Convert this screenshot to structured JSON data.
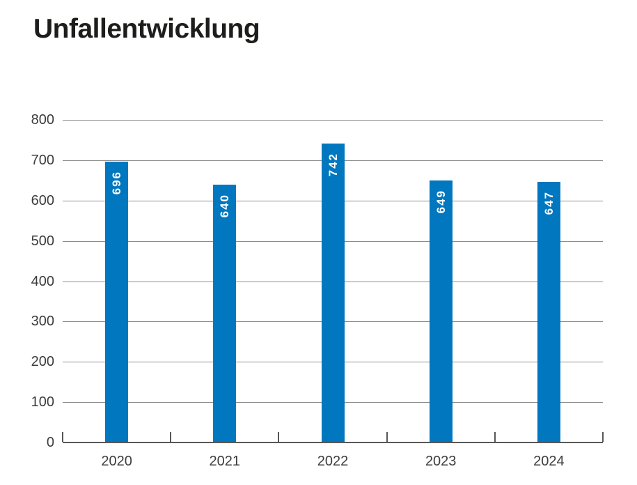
{
  "chart_data": {
    "type": "bar",
    "title": "Unfallentwicklung",
    "categories": [
      "2020",
      "2021",
      "2022",
      "2023",
      "2024"
    ],
    "values": [
      696,
      640,
      742,
      649,
      647
    ],
    "xlabel": "",
    "ylabel": "",
    "ylim": [
      0,
      800
    ],
    "yticks": [
      0,
      100,
      200,
      300,
      400,
      500,
      600,
      700,
      800
    ],
    "grid": "horizontal-only",
    "legend": "none",
    "value_labels": {
      "position": "inside-top",
      "rotation_deg": -90,
      "color": "#ffffff"
    },
    "colors": {
      "bar": "#0077BE",
      "gridline": "#8c8c8c",
      "axis": "#575756",
      "tick_label": "#3c3c3b",
      "title": "#1d1d1b",
      "background": "#ffffff"
    }
  }
}
